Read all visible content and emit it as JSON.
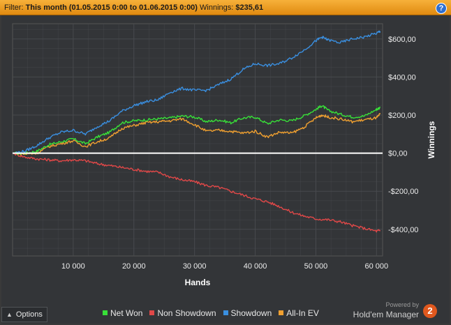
{
  "filter": {
    "prefix": "Filter:",
    "range": "This month (01.05.2015 0:00 to 01.06.2015 0:00)",
    "winnings_label": "Winnings:",
    "winnings_value": "$235,61"
  },
  "help_label": "?",
  "options_label": "Options",
  "branding": {
    "powered_by": "Powered by",
    "name": "Hold'em Manager",
    "logo_text": "2"
  },
  "colors": {
    "net_won": "#38e038",
    "non_showdown": "#e04848",
    "showdown": "#3a8fe0",
    "all_in_ev": "#f0a030",
    "zero_line": "#ffffff",
    "background": "#333538",
    "grid": "#4a4c50"
  },
  "chart_data": {
    "type": "line",
    "xlabel": "Hands",
    "ylabel": "Winnings",
    "xlim": [
      0,
      61000
    ],
    "ylim": [
      -540,
      680
    ],
    "x_ticks": [
      10000,
      20000,
      30000,
      40000,
      50000,
      60000
    ],
    "x_tick_labels": [
      "10 000",
      "20 000",
      "30 000",
      "40 000",
      "50 000",
      "60 000"
    ],
    "y_ticks": [
      -400,
      -200,
      0,
      200,
      400,
      600
    ],
    "y_tick_labels": [
      "-$400,00",
      "-$200,00",
      "$0,00",
      "$200,00",
      "$400,00",
      "$600,00"
    ],
    "grid": true,
    "legend_position": "bottom",
    "series": [
      {
        "name": "Net Won",
        "color_key": "net_won",
        "x": [
          0,
          2000,
          4000,
          6000,
          8000,
          10000,
          12000,
          14000,
          16000,
          18000,
          20000,
          22000,
          24000,
          26000,
          28000,
          30000,
          32000,
          34000,
          36000,
          38000,
          40000,
          42000,
          44000,
          46000,
          48000,
          50000,
          51000,
          52000,
          54000,
          56000,
          58000,
          60000,
          60600
        ],
        "values": [
          0,
          0,
          10,
          45,
          60,
          75,
          50,
          85,
          110,
          160,
          170,
          175,
          180,
          185,
          195,
          190,
          165,
          175,
          160,
          185,
          190,
          155,
          175,
          170,
          195,
          230,
          250,
          225,
          205,
          190,
          195,
          230,
          240
        ]
      },
      {
        "name": "Non Showdown",
        "color_key": "non_showdown",
        "x": [
          0,
          2000,
          4000,
          6000,
          8000,
          10000,
          12000,
          14000,
          16000,
          18000,
          20000,
          22000,
          24000,
          26000,
          28000,
          30000,
          32000,
          34000,
          36000,
          38000,
          40000,
          42000,
          44000,
          46000,
          48000,
          50000,
          52000,
          54000,
          56000,
          58000,
          60000,
          60600
        ],
        "values": [
          0,
          -20,
          -30,
          -35,
          -40,
          -35,
          -40,
          -55,
          -65,
          -75,
          -85,
          -95,
          -100,
          -125,
          -140,
          -150,
          -170,
          -180,
          -200,
          -220,
          -240,
          -255,
          -280,
          -310,
          -330,
          -345,
          -350,
          -360,
          -380,
          -395,
          -410,
          -405
        ]
      },
      {
        "name": "Showdown",
        "color_key": "showdown",
        "x": [
          0,
          2000,
          4000,
          6000,
          8000,
          10000,
          12000,
          14000,
          16000,
          18000,
          20000,
          22000,
          24000,
          26000,
          28000,
          30000,
          32000,
          34000,
          36000,
          38000,
          40000,
          42000,
          44000,
          46000,
          48000,
          50000,
          51000,
          52000,
          54000,
          56000,
          58000,
          60000,
          60600
        ],
        "values": [
          0,
          10,
          40,
          80,
          110,
          120,
          100,
          140,
          170,
          220,
          250,
          270,
          280,
          320,
          340,
          330,
          330,
          360,
          390,
          440,
          470,
          460,
          470,
          500,
          540,
          590,
          610,
          595,
          580,
          600,
          610,
          630,
          640
        ]
      },
      {
        "name": "All-In EV",
        "color_key": "all_in_ev",
        "x": [
          0,
          2000,
          4000,
          6000,
          8000,
          10000,
          12000,
          14000,
          16000,
          18000,
          20000,
          22000,
          24000,
          26000,
          28000,
          30000,
          32000,
          34000,
          36000,
          38000,
          40000,
          42000,
          44000,
          46000,
          48000,
          50000,
          51000,
          52000,
          54000,
          56000,
          58000,
          60000,
          60600
        ],
        "values": [
          0,
          -5,
          0,
          35,
          50,
          65,
          35,
          60,
          80,
          130,
          145,
          160,
          165,
          170,
          180,
          150,
          115,
          120,
          115,
          105,
          115,
          85,
          110,
          105,
          135,
          185,
          200,
          190,
          180,
          165,
          175,
          185,
          205
        ]
      }
    ]
  }
}
